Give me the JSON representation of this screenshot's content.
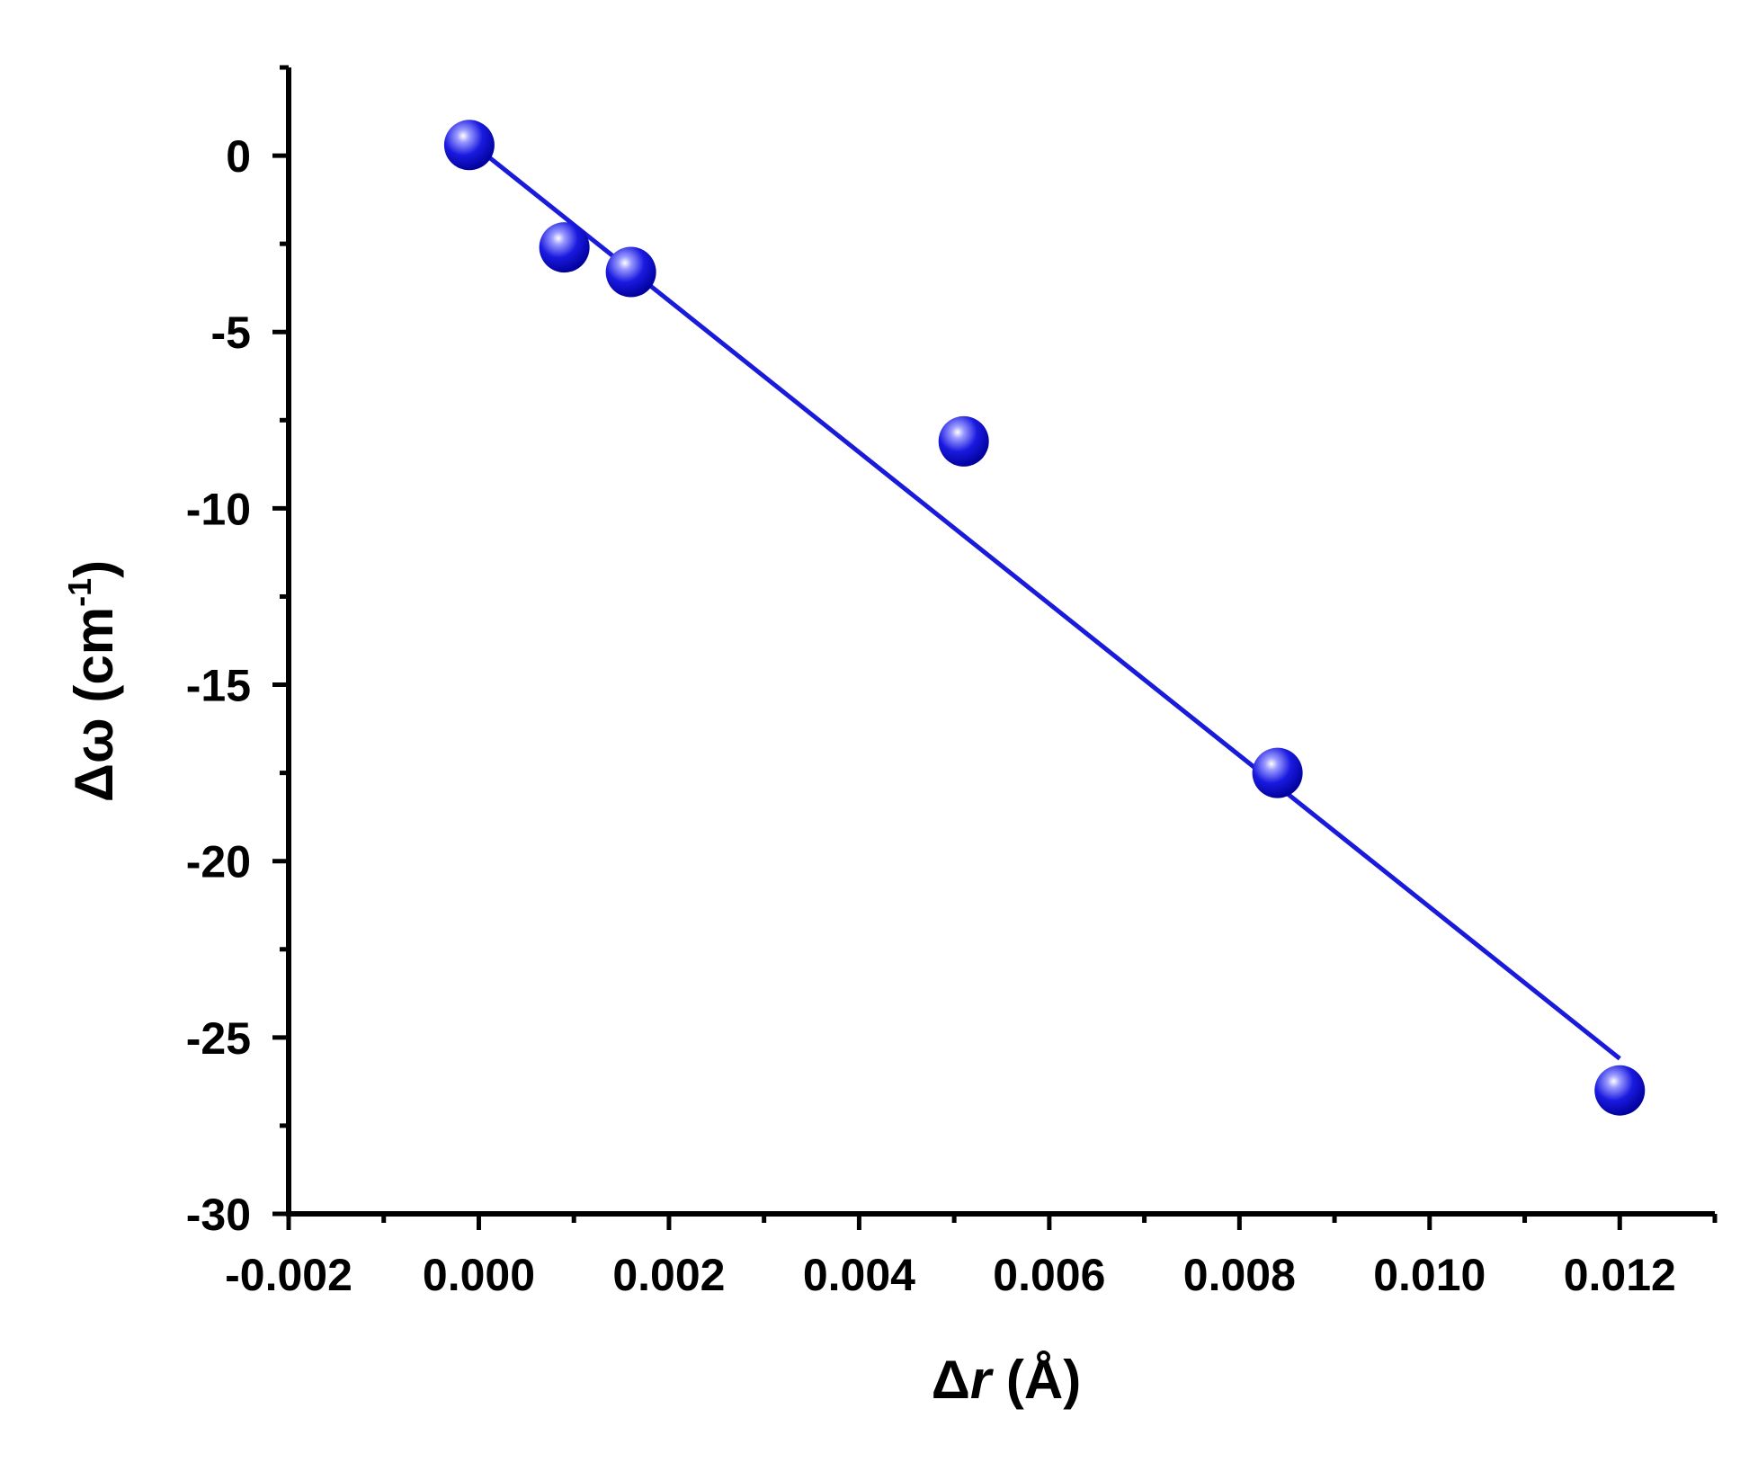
{
  "chart_data": {
    "type": "scatter",
    "xlabel": "Δr (Å)",
    "xlabel_parts": {
      "delta": "Δ",
      "var": "r",
      "unit": " (Å)"
    },
    "ylabel": "Δω (cm-1)",
    "ylabel_parts": {
      "main": "Δω (cm",
      "sup": "-1",
      "close": ")"
    },
    "xlim": [
      -0.002,
      0.013
    ],
    "ylim": [
      -30,
      2.5
    ],
    "x_ticks": [
      {
        "value": -0.002,
        "label": "-0.002"
      },
      {
        "value": 0.0,
        "label": "0.000"
      },
      {
        "value": 0.002,
        "label": "0.002"
      },
      {
        "value": 0.004,
        "label": "0.004"
      },
      {
        "value": 0.006,
        "label": "0.006"
      },
      {
        "value": 0.008,
        "label": "0.008"
      },
      {
        "value": 0.01,
        "label": "0.010"
      },
      {
        "value": 0.012,
        "label": "0.012"
      }
    ],
    "x_minor_ticks": [
      -0.001,
      0.001,
      0.003,
      0.005,
      0.007,
      0.009,
      0.011,
      0.013
    ],
    "y_ticks": [
      {
        "value": 0,
        "label": "0"
      },
      {
        "value": -5,
        "label": "-5"
      },
      {
        "value": -10,
        "label": "-10"
      },
      {
        "value": -15,
        "label": "-15"
      },
      {
        "value": -20,
        "label": "-20"
      },
      {
        "value": -25,
        "label": "-25"
      },
      {
        "value": -30,
        "label": "-30"
      }
    ],
    "y_minor_ticks": [
      2.5,
      -2.5,
      -7.5,
      -12.5,
      -17.5,
      -22.5,
      -27.5
    ],
    "series": [
      {
        "kind": "points",
        "color": "#1a1adb",
        "points": [
          {
            "x": -0.0001,
            "y": 0.3
          },
          {
            "x": 0.0009,
            "y": -2.6
          },
          {
            "x": 0.0016,
            "y": -3.3
          },
          {
            "x": 0.0051,
            "y": -8.1
          },
          {
            "x": 0.0084,
            "y": -17.5
          },
          {
            "x": 0.012,
            "y": -26.5
          }
        ]
      },
      {
        "kind": "fit-line",
        "color": "#1a1adb",
        "points": [
          {
            "x": -0.0001,
            "y": 0.4
          },
          {
            "x": 0.012,
            "y": -25.6
          }
        ]
      }
    ],
    "grid": false,
    "legend": "none"
  }
}
